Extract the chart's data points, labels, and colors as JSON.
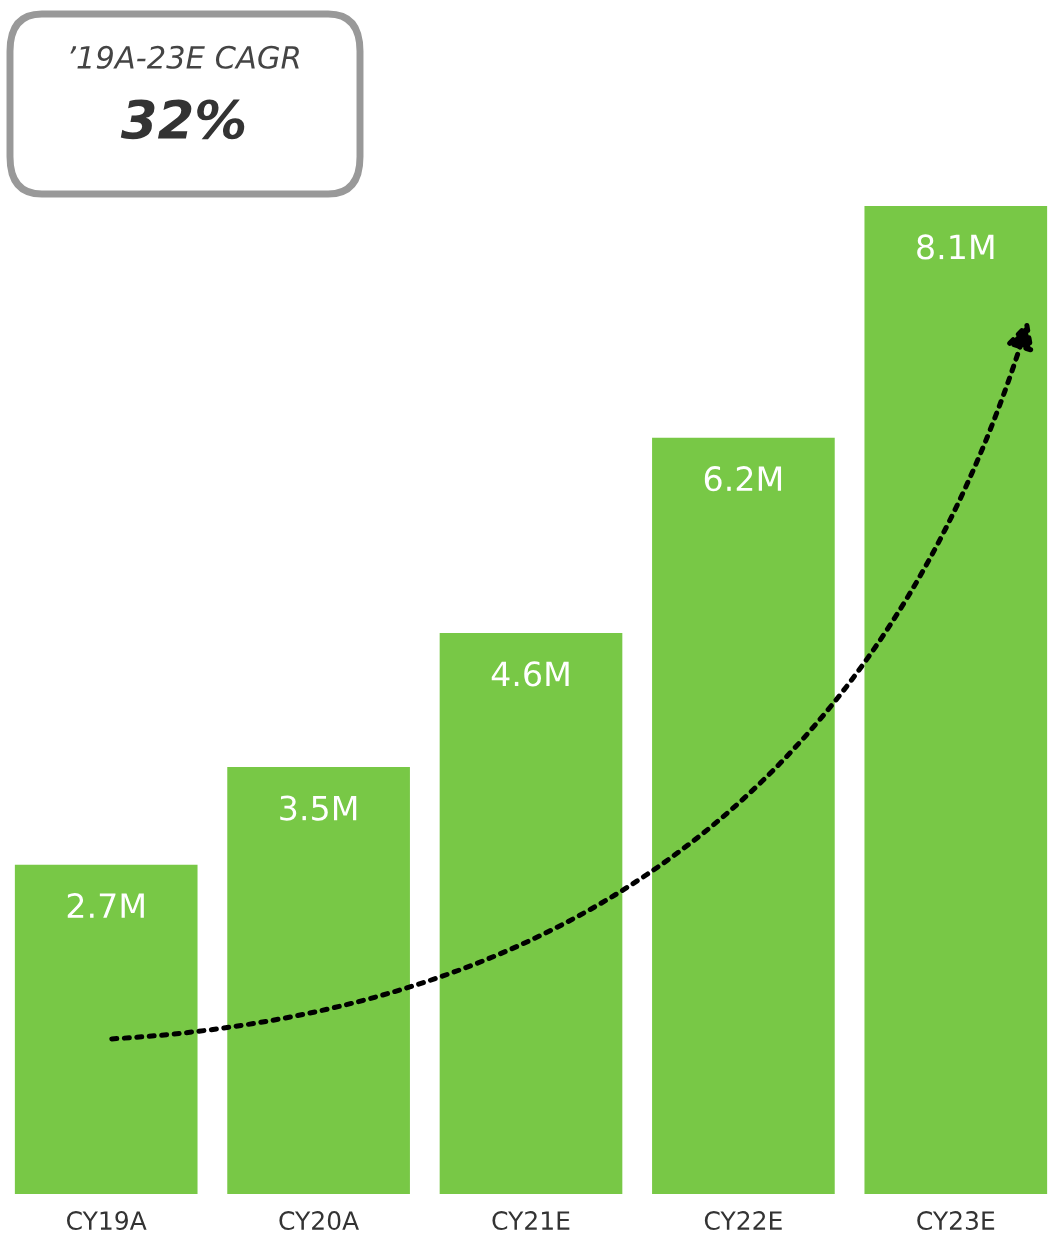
{
  "chart_data": {
    "type": "bar",
    "categories": [
      "CY19A",
      "CY20A",
      "CY21E",
      "CY22E",
      "CY23E"
    ],
    "values": [
      2.7,
      3.5,
      4.6,
      6.2,
      8.1
    ],
    "value_labels": [
      "2.7M",
      "3.5M",
      "4.6M",
      "6.2M",
      "8.1M"
    ],
    "color": "#78c846",
    "annotations": [
      "’19A-23E CAGR",
      "32%"
    ],
    "grid": false,
    "legend": false
  }
}
